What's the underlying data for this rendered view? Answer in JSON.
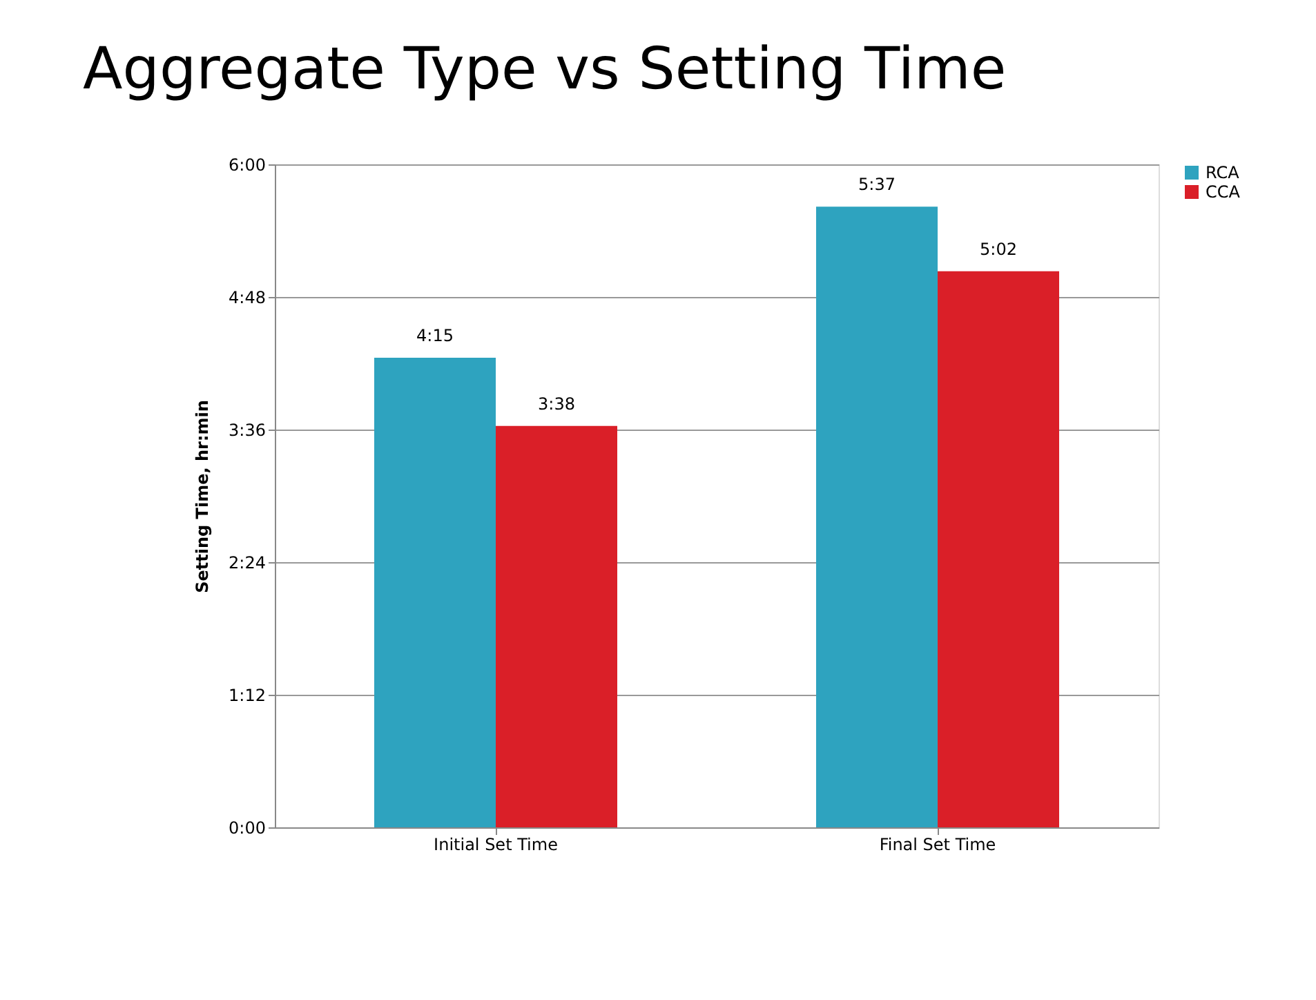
{
  "chart_data": {
    "type": "bar",
    "title": "Aggregate Type vs Setting Time",
    "ylabel": "Setting Time, hr:min",
    "categories": [
      "Initial Set Time",
      "Final Set Time"
    ],
    "series": [
      {
        "name": "RCA",
        "color": "#2ea3bf",
        "values": [
          4.25,
          5.617
        ],
        "value_labels": [
          "4:15",
          "5:37"
        ]
      },
      {
        "name": "CCA",
        "color": "#da1f28",
        "values": [
          3.633,
          5.033
        ],
        "value_labels": [
          "3:38",
          "5:02"
        ]
      }
    ],
    "ylim": [
      0,
      6
    ],
    "yticks": [
      {
        "value": 0,
        "label": "0:00"
      },
      {
        "value": 1.2,
        "label": "1:12"
      },
      {
        "value": 2.4,
        "label": "2:24"
      },
      {
        "value": 3.6,
        "label": "3:36"
      },
      {
        "value": 4.8,
        "label": "4:48"
      },
      {
        "value": 6,
        "label": "6:00"
      }
    ],
    "grid": "y",
    "legend": "right"
  }
}
